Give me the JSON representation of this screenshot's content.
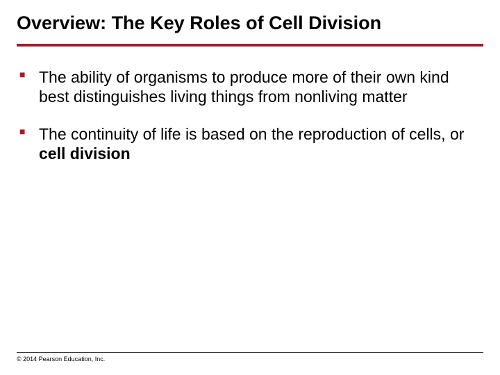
{
  "title": "Overview: The Key Roles of Cell Division",
  "title_underline_color": "#a11d2c",
  "bullet_marker_color": "#a11d2c",
  "background_color": "#ffffff",
  "text_color": "#000000",
  "title_fontsize": 27,
  "body_fontsize": 23,
  "bullets": [
    {
      "segments": [
        {
          "text": "The ability of organisms to produce more of their own kind best distinguishes living things from nonliving matter",
          "bold": false
        }
      ]
    },
    {
      "segments": [
        {
          "text": "The continuity of life is based on the reproduction of cells, or ",
          "bold": false
        },
        {
          "text": "cell division",
          "bold": true
        }
      ]
    }
  ],
  "copyright": "© 2014 Pearson Education, Inc."
}
